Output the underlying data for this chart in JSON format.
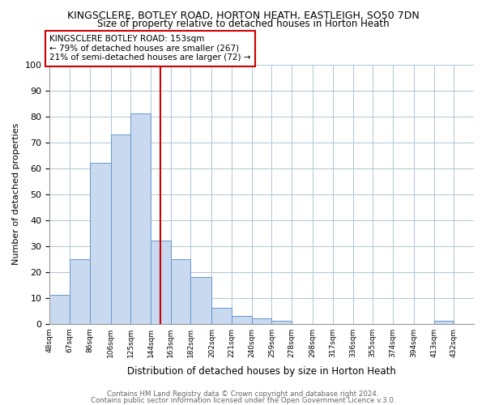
{
  "title": "KINGSCLERE, BOTLEY ROAD, HORTON HEATH, EASTLEIGH, SO50 7DN",
  "subtitle": "Size of property relative to detached houses in Horton Heath",
  "xlabel": "Distribution of detached houses by size in Horton Heath",
  "ylabel": "Number of detached properties",
  "bin_labels": [
    "48sqm",
    "67sqm",
    "86sqm",
    "106sqm",
    "125sqm",
    "144sqm",
    "163sqm",
    "182sqm",
    "202sqm",
    "221sqm",
    "240sqm",
    "259sqm",
    "278sqm",
    "298sqm",
    "317sqm",
    "336sqm",
    "355sqm",
    "374sqm",
    "394sqm",
    "413sqm",
    "432sqm"
  ],
  "bin_edges": [
    48,
    67,
    86,
    106,
    125,
    144,
    163,
    182,
    202,
    221,
    240,
    259,
    278,
    298,
    317,
    336,
    355,
    374,
    394,
    413,
    432,
    451
  ],
  "bar_heights": [
    11,
    25,
    62,
    73,
    81,
    32,
    25,
    18,
    6,
    3,
    2,
    1,
    0,
    0,
    0,
    0,
    0,
    0,
    0,
    1,
    0
  ],
  "bar_color": "#c8d9f0",
  "bar_edge_color": "#6699cc",
  "vline_x": 153,
  "vline_color": "#cc0000",
  "annotation_line1": "KINGSCLERE BOTLEY ROAD: 153sqm",
  "annotation_line2": "← 79% of detached houses are smaller (267)",
  "annotation_line3": "21% of semi-detached houses are larger (72) →",
  "annotation_box_color": "#ffffff",
  "annotation_box_edge_color": "#cc0000",
  "ylim": [
    0,
    100
  ],
  "yticks": [
    0,
    10,
    20,
    30,
    40,
    50,
    60,
    70,
    80,
    90,
    100
  ],
  "footer1": "Contains HM Land Registry data © Crown copyright and database right 2024.",
  "footer2": "Contains public sector information licensed under the Open Government Licence v.3.0.",
  "background_color": "#ffffff",
  "grid_color": "#aec6d4"
}
